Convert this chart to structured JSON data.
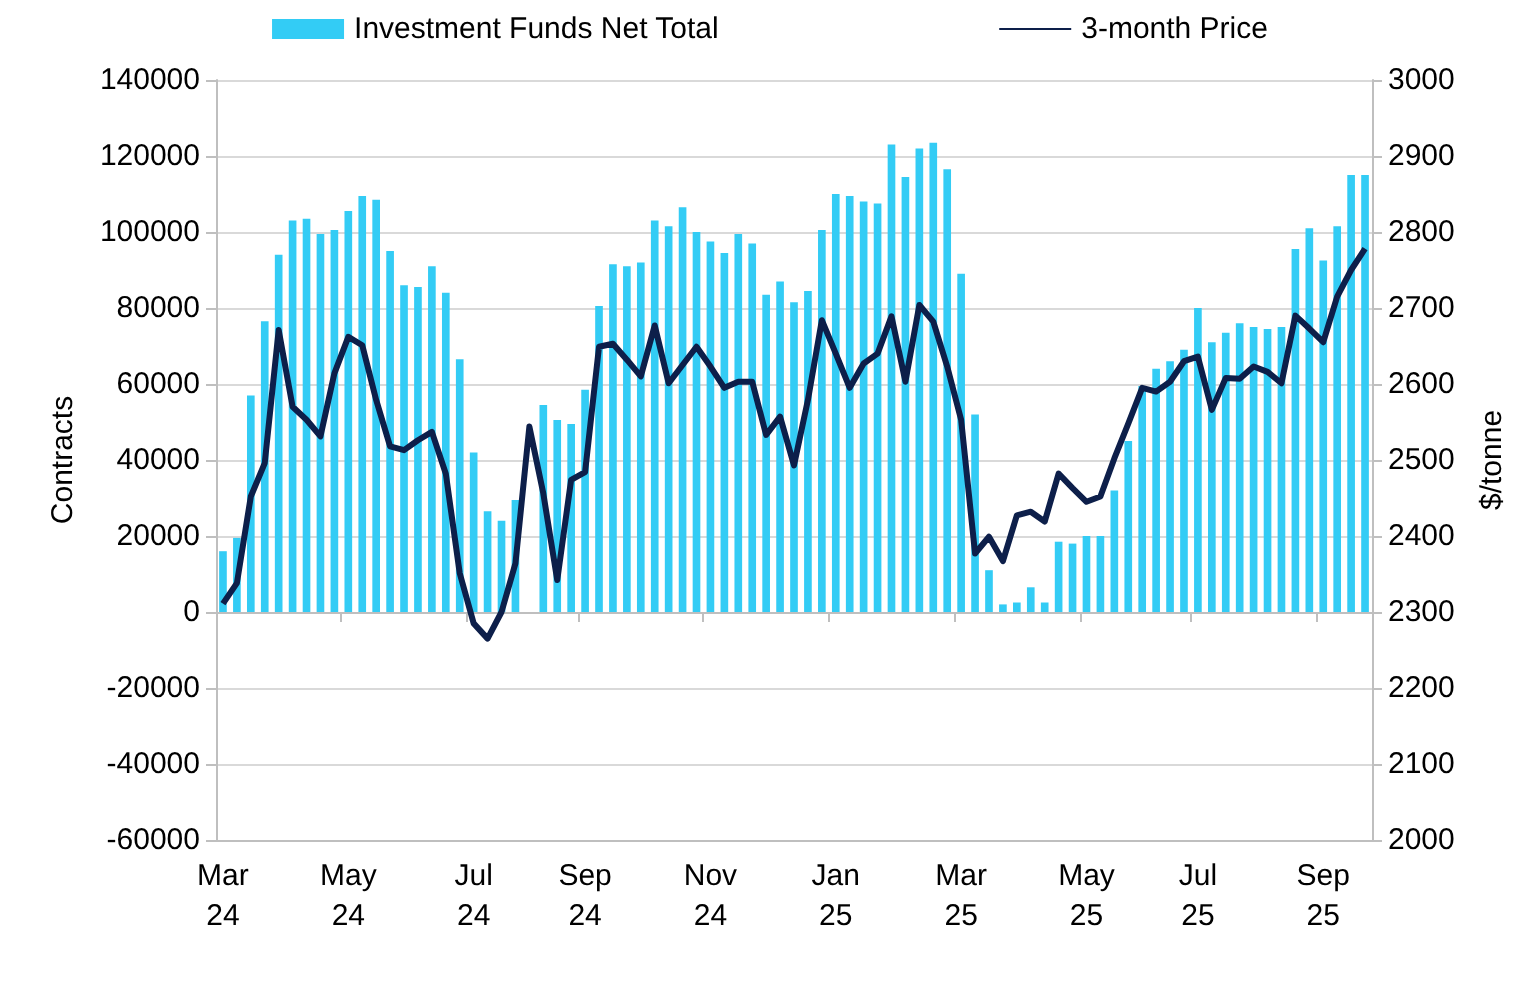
{
  "chart_data": {
    "type": "bar",
    "ylabel": "Contracts",
    "y2label": "$/tonne",
    "categories": [
      "Mar\n24",
      null,
      null,
      null,
      null,
      null,
      null,
      null,
      null,
      "May\n24",
      null,
      null,
      null,
      null,
      null,
      null,
      null,
      null,
      "Jul\n24",
      null,
      null,
      null,
      null,
      null,
      null,
      null,
      "Sep\n24",
      null,
      null,
      null,
      null,
      null,
      null,
      null,
      null,
      "Nov\n24",
      null,
      null,
      null,
      null,
      null,
      null,
      null,
      null,
      "Jan\n25",
      null,
      null,
      null,
      null,
      null,
      null,
      null,
      null,
      "Mar\n25",
      null,
      null,
      null,
      null,
      null,
      null,
      null,
      null,
      "May\n25",
      null,
      null,
      null,
      null,
      null,
      null,
      null,
      "Jul\n25",
      null,
      null,
      null,
      null,
      null,
      null,
      null,
      null,
      "Sep\n25",
      null,
      null,
      null
    ],
    "series": [
      {
        "name": "Investment Funds Net Total",
        "color": "#33ccf5",
        "values": [
          16000,
          19500,
          57000,
          76500,
          94000,
          103000,
          103500,
          99500,
          100500,
          105500,
          109500,
          108500,
          95000,
          86000,
          85500,
          91000,
          84000,
          66500,
          42000,
          26500,
          24000,
          29500,
          null,
          54500,
          50500,
          49500,
          58500,
          80500,
          91500,
          91000,
          92000,
          103000,
          101500,
          106500,
          100000,
          97500,
          94500,
          99500,
          97000,
          83500,
          87000,
          81500,
          84500,
          100500,
          110000,
          109500,
          108000,
          107500,
          123000,
          114500,
          122000,
          123500,
          116500,
          89000,
          52000,
          11000,
          2000,
          2500,
          6500,
          2500,
          18500,
          18000,
          20000,
          20000,
          32000,
          45000,
          59500,
          64000,
          66000,
          69000,
          80000,
          71000,
          73500,
          76000,
          75000,
          74500,
          75000,
          95500,
          101000,
          92500,
          101500,
          115000,
          115000
        ]
      },
      {
        "name": "3-month Price",
        "type": "line",
        "axis": "y2",
        "color": "#0d1f4a",
        "values": [
          2311,
          2338,
          2452,
          2496,
          2671,
          2570,
          2553,
          2531,
          2614,
          2662,
          2651,
          2579,
          2518,
          2513,
          2526,
          2537,
          2482,
          2351,
          2285,
          2265,
          2300,
          2364,
          2544,
          2456,
          2342,
          2474,
          2484,
          2649,
          2653,
          2632,
          2610,
          2677,
          2601,
          2625,
          2649,
          2623,
          2595,
          2603,
          2603,
          2533,
          2557,
          2493,
          2579,
          2684,
          2640,
          2595,
          2627,
          2640,
          2689,
          2603,
          2704,
          2682,
          2623,
          2553,
          2377,
          2399,
          2367,
          2427,
          2432,
          2419,
          2482,
          2463,
          2445,
          2452,
          2502,
          2548,
          2595,
          2590,
          2603,
          2630,
          2636,
          2566,
          2608,
          2607,
          2623,
          2616,
          2601,
          2690,
          2673,
          2655,
          2715,
          2750,
          2778
        ]
      }
    ],
    "ylim": [
      -60000,
      140000
    ],
    "yticks": [
      -60000,
      -40000,
      -20000,
      0,
      20000,
      40000,
      60000,
      80000,
      100000,
      120000,
      140000
    ],
    "y2lim": [
      2000,
      3000
    ],
    "y2ticks": [
      2000,
      2100,
      2200,
      2300,
      2400,
      2500,
      2600,
      2700,
      2800,
      2900,
      3000
    ],
    "grid": "y",
    "legend": "top",
    "marker": "none",
    "line_style": "solid"
  }
}
